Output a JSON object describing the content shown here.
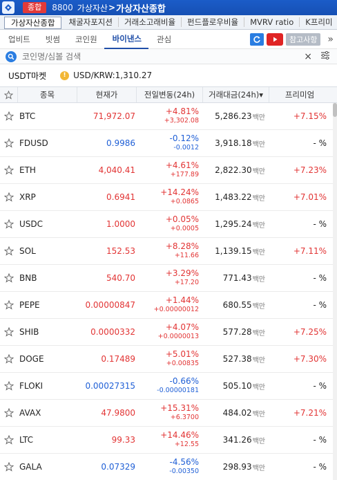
{
  "titlebar": {
    "badge": "종합",
    "code": "8800",
    "path": "가상자산",
    "separator": ">",
    "current": "가상자산종합"
  },
  "tabs": [
    {
      "label": "가상자산종합",
      "active": true
    },
    {
      "label": "채굴자포지션",
      "active": false
    },
    {
      "label": "거래소고래비율",
      "active": false
    },
    {
      "label": "펀드플로우비율",
      "active": false
    },
    {
      "label": "MVRV ratio",
      "active": false
    },
    {
      "label": "K프리미",
      "active": false
    }
  ],
  "subnav": {
    "items": [
      {
        "label": "업비트",
        "active": false
      },
      {
        "label": "빗썸",
        "active": false
      },
      {
        "label": "코인원",
        "active": false
      },
      {
        "label": "바이낸스",
        "active": true
      },
      {
        "label": "관심",
        "active": false
      }
    ],
    "note_button": "참고사항",
    "more": "»"
  },
  "search": {
    "placeholder": "코인명/심볼 검색",
    "clear": "×"
  },
  "market": {
    "name": "USDT마켓",
    "fx_icon": "!",
    "fx_rate": "USD/KRW:1,310.27"
  },
  "table": {
    "headers": {
      "name": "종목",
      "price": "현재가",
      "change": "전일변동(24h)",
      "volume": "거래대금(24h)▾",
      "premium": "프리미엄"
    },
    "volume_unit": "백만",
    "rows": [
      {
        "symbol": "BTC",
        "price": "71,972.07",
        "pct": "+4.81%",
        "abs": "+3,302.08",
        "volume": "5,286.23",
        "premium": "+7.15%",
        "dir": "up",
        "prem_dir": "up"
      },
      {
        "symbol": "FDUSD",
        "price": "0.9986",
        "pct": "-0.12%",
        "abs": "-0.0012",
        "volume": "3,918.18",
        "premium": "- %",
        "dir": "down",
        "prem_dir": "flat"
      },
      {
        "symbol": "ETH",
        "price": "4,040.41",
        "pct": "+4.61%",
        "abs": "+177.89",
        "volume": "2,822.30",
        "premium": "+7.23%",
        "dir": "up",
        "prem_dir": "up"
      },
      {
        "symbol": "XRP",
        "price": "0.6941",
        "pct": "+14.24%",
        "abs": "+0.0865",
        "volume": "1,483.22",
        "premium": "+7.01%",
        "dir": "up",
        "prem_dir": "up"
      },
      {
        "symbol": "USDC",
        "price": "1.0000",
        "pct": "+0.05%",
        "abs": "+0.0005",
        "volume": "1,295.24",
        "premium": "- %",
        "dir": "up",
        "prem_dir": "flat"
      },
      {
        "symbol": "SOL",
        "price": "152.53",
        "pct": "+8.28%",
        "abs": "+11.66",
        "volume": "1,139.15",
        "premium": "+7.11%",
        "dir": "up",
        "prem_dir": "up"
      },
      {
        "symbol": "BNB",
        "price": "540.70",
        "pct": "+3.29%",
        "abs": "+17.20",
        "volume": "771.43",
        "premium": "- %",
        "dir": "up",
        "prem_dir": "flat"
      },
      {
        "symbol": "PEPE",
        "price": "0.00000847",
        "pct": "+1.44%",
        "abs": "+0.00000012",
        "volume": "680.55",
        "premium": "- %",
        "dir": "up",
        "prem_dir": "flat"
      },
      {
        "symbol": "SHIB",
        "price": "0.0000332",
        "pct": "+4.07%",
        "abs": "+0.0000013",
        "volume": "577.28",
        "premium": "+7.25%",
        "dir": "up",
        "prem_dir": "up"
      },
      {
        "symbol": "DOGE",
        "price": "0.17489",
        "pct": "+5.01%",
        "abs": "+0.00835",
        "volume": "527.38",
        "premium": "+7.30%",
        "dir": "up",
        "prem_dir": "up"
      },
      {
        "symbol": "FLOKI",
        "price": "0.00027315",
        "pct": "-0.66%",
        "abs": "-0.00000181",
        "volume": "505.10",
        "premium": "- %",
        "dir": "down",
        "prem_dir": "flat"
      },
      {
        "symbol": "AVAX",
        "price": "47.9800",
        "pct": "+15.31%",
        "abs": "+6.3700",
        "volume": "484.02",
        "premium": "+7.21%",
        "dir": "up",
        "prem_dir": "up"
      },
      {
        "symbol": "LTC",
        "price": "99.33",
        "pct": "+14.46%",
        "abs": "+12.55",
        "volume": "341.26",
        "premium": "- %",
        "dir": "up",
        "prem_dir": "flat"
      },
      {
        "symbol": "GALA",
        "price": "0.07329",
        "pct": "-4.56%",
        "abs": "-0.00350",
        "volume": "298.93",
        "premium": "- %",
        "dir": "down",
        "prem_dir": "flat"
      }
    ]
  },
  "colors": {
    "up": "#e23434",
    "down": "#1f5fd6",
    "accent": "#1f4ea8",
    "titlebar": "#1b5cc8"
  }
}
